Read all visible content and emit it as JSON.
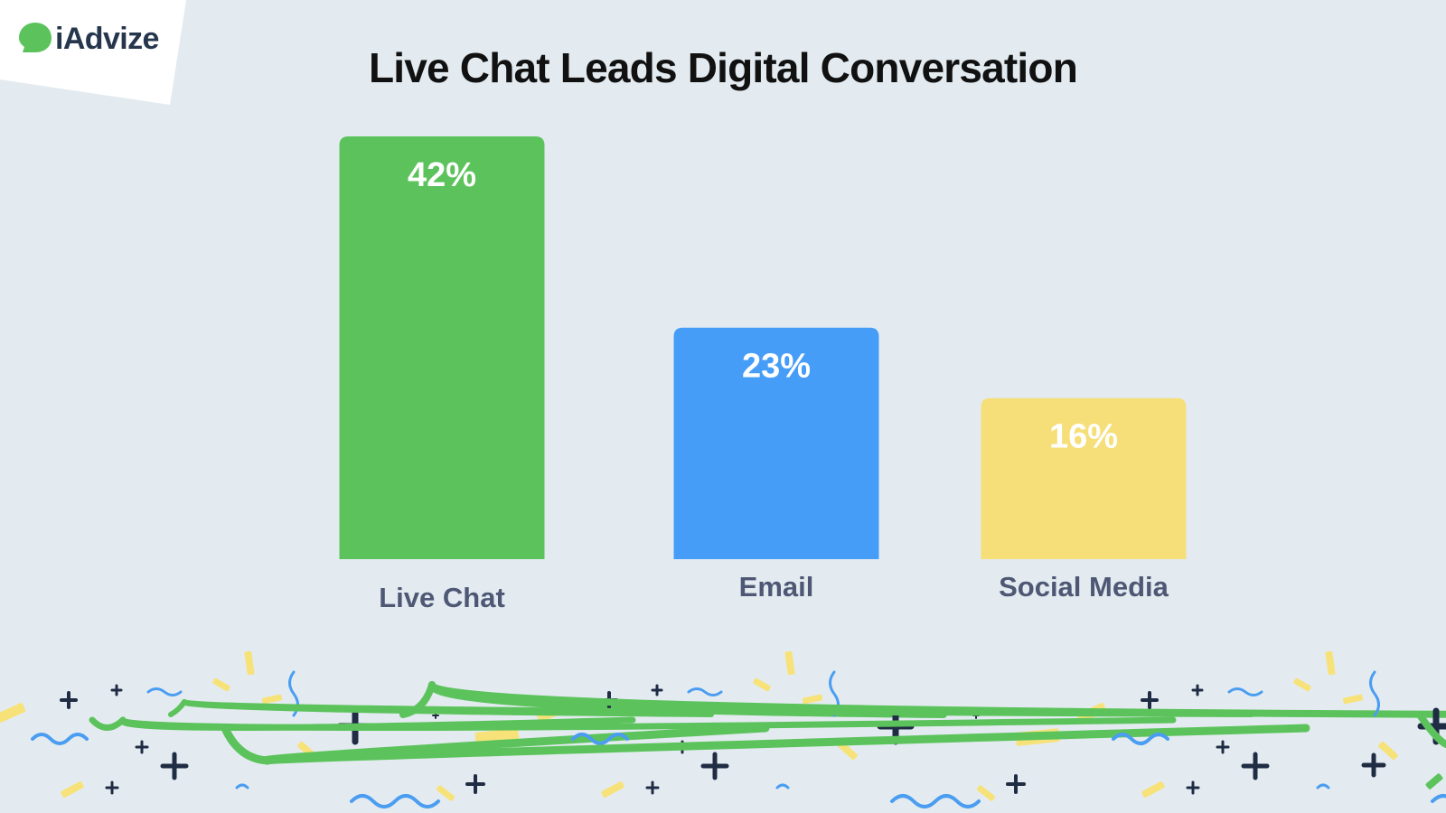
{
  "brand": {
    "name": "iAdvize",
    "logo_icon": "chat-bubble-logo-icon",
    "logo_color": "#5cc35c"
  },
  "colors": {
    "background": "#e3ebf0",
    "title": "#111111",
    "label": "#4e5875",
    "value_label": "#ffffff",
    "confetti_green": "#5cc35c",
    "confetti_blue": "#4a9df0",
    "confetti_yellow": "#f7e27a",
    "confetti_navy": "#1f2c44"
  },
  "chart_data": {
    "type": "bar",
    "title": "Live Chat Leads Digital Conversation",
    "categories": [
      "Live Chat",
      "Email",
      "Social Media"
    ],
    "values": [
      42,
      23,
      16
    ],
    "value_labels": [
      "42%",
      "23%",
      "16%"
    ],
    "colors": [
      "#5cc35c",
      "#459df7",
      "#f6de79"
    ],
    "xlabel": "",
    "ylabel": "",
    "unit": "%",
    "grid": false,
    "legend": "none"
  },
  "decoration": {
    "icon": "confetti-icon"
  }
}
